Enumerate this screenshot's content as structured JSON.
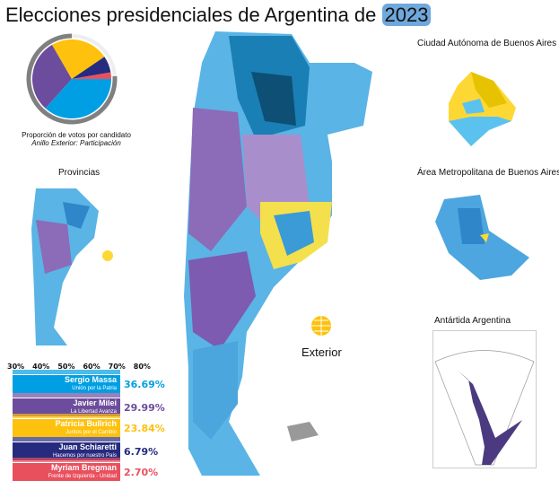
{
  "title": {
    "text": "Elecciones presidenciales de Argentina de",
    "year": "2023"
  },
  "pie": {
    "caption": "Proporción de votos por candidato",
    "subcaption": "Anillo Exterior: Participación",
    "participation_pct": 76
  },
  "insets": {
    "caba": "Ciudad Autónoma de Buenos Aires",
    "amba": "Área Metropolitana de Buenos Aires",
    "provincias": "Provincias",
    "antartida": "Antártida Argentina",
    "exterior": "Exterior"
  },
  "scale": [
    "30%",
    "40%",
    "50%",
    "60%",
    "70%",
    "80%"
  ],
  "candidates": [
    {
      "name": "Sergio Massa",
      "party": "Unión por la Patria",
      "pct": "36.69%",
      "value": 36.69,
      "color": "#009fe3"
    },
    {
      "name": "Javier Milei",
      "party": "La Libertad Avanza",
      "pct": "29.99%",
      "value": 29.99,
      "color": "#6c4c9c"
    },
    {
      "name": "Patricia Bullrich",
      "party": "Juntos por el Cambio",
      "pct": "23.84%",
      "value": 23.84,
      "color": "#fec10d"
    },
    {
      "name": "Juan Schiaretti",
      "party": "Hacemos por nuestro País",
      "pct": "6.79%",
      "value": 6.79,
      "color": "#262b7f"
    },
    {
      "name": "Myriam Bregman",
      "party": "Frente de Izquierda - Unidad",
      "pct": "2.70%",
      "value": 2.7,
      "color": "#e9505e"
    }
  ]
}
